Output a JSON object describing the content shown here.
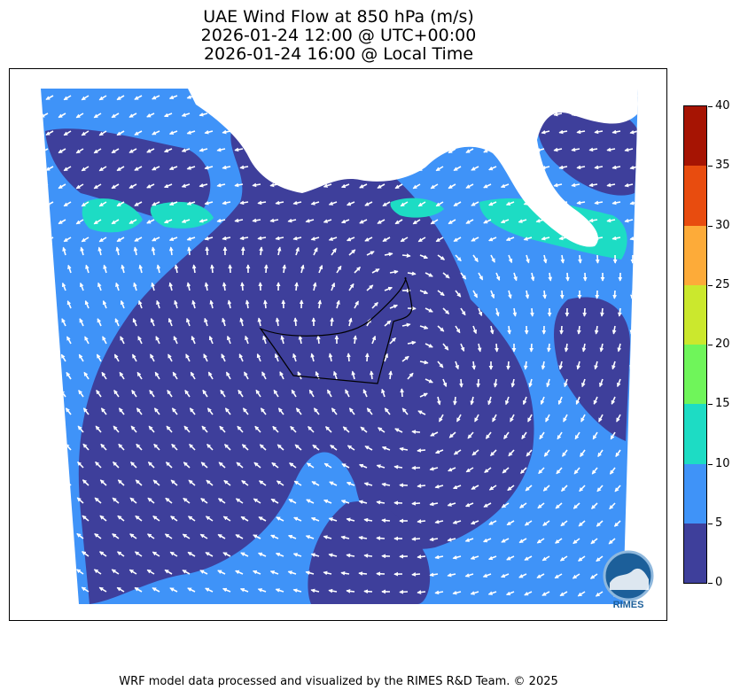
{
  "title": {
    "line1": "UAE Wind Flow at 850 hPa (m/s)",
    "line2": "2026-01-24 12:00 @ UTC+00:00",
    "line3": "2026-01-24 16:00 @ Local Time"
  },
  "colorbar": {
    "bins": [
      {
        "from": 0,
        "to": 5,
        "color": "#3e3f9b"
      },
      {
        "from": 5,
        "to": 10,
        "color": "#3f93f8"
      },
      {
        "from": 10,
        "to": 15,
        "color": "#1ddcc4"
      },
      {
        "from": 15,
        "to": 20,
        "color": "#6ff55a"
      },
      {
        "from": 20,
        "to": 25,
        "color": "#cbe82d"
      },
      {
        "from": 25,
        "to": 30,
        "color": "#fdab39"
      },
      {
        "from": 30,
        "to": 35,
        "color": "#e84c0f"
      },
      {
        "from": 35,
        "to": 40,
        "color": "#a61403"
      }
    ],
    "ticks": [
      "0",
      "5",
      "10",
      "15",
      "20",
      "25",
      "30",
      "35",
      "40"
    ]
  },
  "map": {
    "background_color": "#3f93f8",
    "calm_color": "#3e3f9b",
    "moderate_color": "#1ddcc4",
    "arrow_color": "#ffffff",
    "border_color": "#000000"
  },
  "logo": {
    "text": "RIMES"
  },
  "footer": "WRF model data processed and visualized by the RIMES R&D Team. © 2025"
}
